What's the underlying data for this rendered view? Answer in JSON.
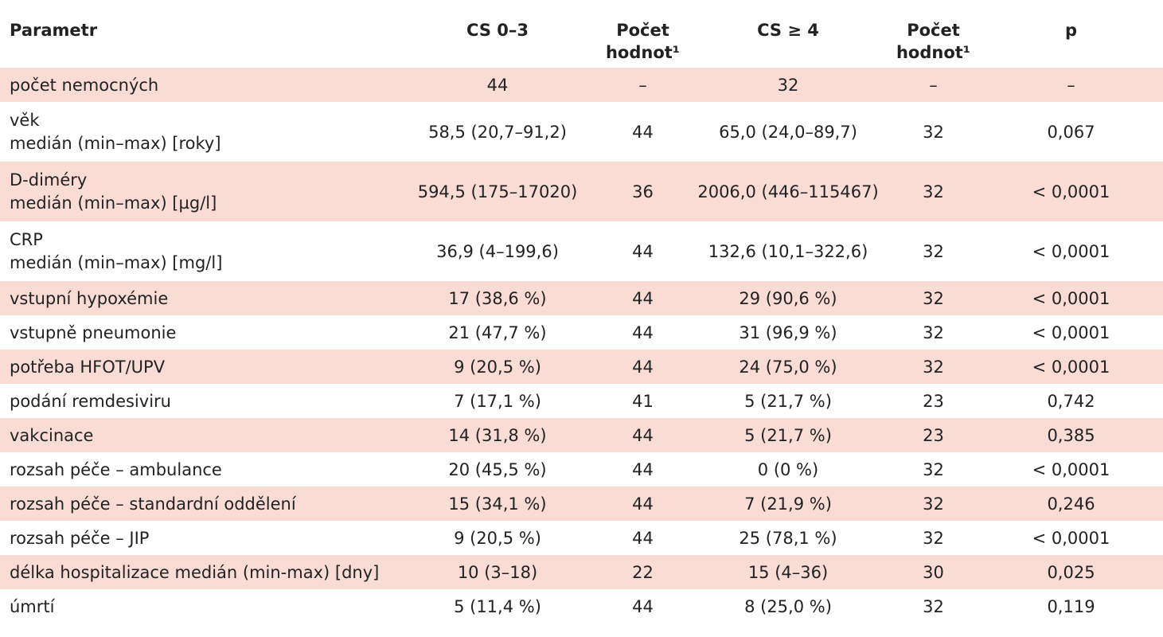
{
  "headers": {
    "parametr": "Parametr",
    "cs03": "CS 0–3",
    "count1_l1": "Počet",
    "count1_l2": "hodnot¹",
    "cs4": "CS ≥ 4",
    "count2_l1": "Počet",
    "count2_l2": "hodnot¹",
    "p": "p"
  },
  "rows": [
    {
      "param_l1": "počet nemocných",
      "param_l2": null,
      "cs03": "44",
      "n1": "–",
      "cs4": "32",
      "n2": "–",
      "p": "–"
    },
    {
      "param_l1": "věk",
      "param_l2": "medián (min–max) [roky]",
      "cs03": "58,5 (20,7–91,2)",
      "n1": "44",
      "cs4": "65,0 (24,0–89,7)",
      "n2": "32",
      "p": "0,067"
    },
    {
      "param_l1": "D-diméry",
      "param_l2": "medián (min–max) [µg/l]",
      "cs03": "594,5 (175–17020)",
      "n1": "36",
      "cs4": "2006,0 (446–115467)",
      "n2": "32",
      "p": "< 0,0001"
    },
    {
      "param_l1": "CRP",
      "param_l2": "medián (min–max) [mg/l]",
      "cs03": "36,9 (4–199,6)",
      "n1": "44",
      "cs4": "132,6 (10,1–322,6)",
      "n2": "32",
      "p": "< 0,0001"
    },
    {
      "param_l1": "vstupní hypoxémie",
      "param_l2": null,
      "cs03": "17 (38,6 %)",
      "n1": "44",
      "cs4": "29 (90,6 %)",
      "n2": "32",
      "p": "< 0,0001"
    },
    {
      "param_l1": "vstupně pneumonie",
      "param_l2": null,
      "cs03": "21 (47,7 %)",
      "n1": "44",
      "cs4": "31 (96,9 %)",
      "n2": "32",
      "p": "< 0,0001"
    },
    {
      "param_l1": "potřeba HFOT/UPV",
      "param_l2": null,
      "cs03": "9 (20,5 %)",
      "n1": "44",
      "cs4": "24 (75,0 %)",
      "n2": "32",
      "p": "< 0,0001"
    },
    {
      "param_l1": "podání remdesiviru",
      "param_l2": null,
      "cs03": "7 (17,1 %)",
      "n1": "41",
      "cs4": "5 (21,7 %)",
      "n2": "23",
      "p": "0,742"
    },
    {
      "param_l1": "vakcinace",
      "param_l2": null,
      "cs03": "14 (31,8 %)",
      "n1": "44",
      "cs4": "5 (21,7 %)",
      "n2": "23",
      "p": "0,385"
    },
    {
      "param_l1": "rozsah péče – ambulance",
      "param_l2": null,
      "cs03": "20 (45,5 %)",
      "n1": "44",
      "cs4": "0 (0 %)",
      "n2": "32",
      "p": "< 0,0001"
    },
    {
      "param_l1": "rozsah péče – standardní oddělení",
      "param_l2": null,
      "cs03": "15 (34,1 %)",
      "n1": "44",
      "cs4": "7 (21,9 %)",
      "n2": "32",
      "p": "0,246"
    },
    {
      "param_l1": "rozsah péče – JIP",
      "param_l2": null,
      "cs03": "9 (20,5 %)",
      "n1": "44",
      "cs4": "25 (78,1 %)",
      "n2": "32",
      "p": "< 0,0001"
    },
    {
      "param_l1": "délka hospitalizace medián (min-max) [dny]",
      "param_l2": null,
      "cs03": "10 (3–18)",
      "n1": "22",
      "cs4": "15 (4–36)",
      "n2": "30",
      "p": "0,025"
    },
    {
      "param_l1": "úmrtí",
      "param_l2": null,
      "cs03": "5 (11,4 %)",
      "n1": "44",
      "cs4": "8 (25,0 %)",
      "n2": "32",
      "p": "0,119"
    }
  ]
}
